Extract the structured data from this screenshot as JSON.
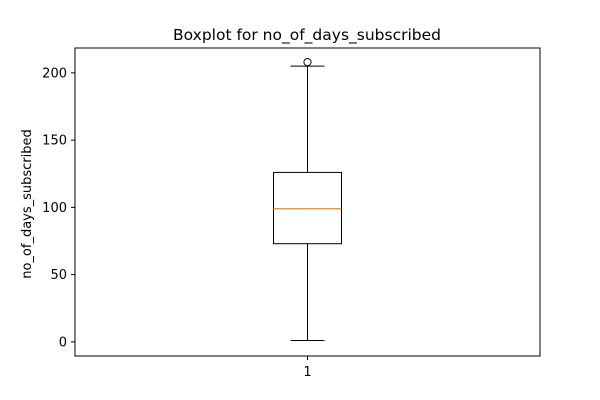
{
  "chart_data": {
    "type": "boxplot",
    "title": "Boxplot for no_of_days_subscribed",
    "xlabel": "",
    "ylabel": "no_of_days_subscribed",
    "categories": [
      "1"
    ],
    "yticks": [
      0,
      50,
      100,
      150,
      200
    ],
    "ylim": [
      -10.5,
      218.5
    ],
    "xlim": [
      0.5,
      1.5
    ],
    "boxes": [
      {
        "category": "1",
        "whisker_low": 1,
        "q1": 73,
        "median": 99,
        "q3": 126,
        "whisker_high": 205,
        "outliers": [
          208
        ]
      }
    ],
    "grid": false,
    "colors": {
      "box": "#000000",
      "median": "#ff7f0e",
      "whisker": "#000000",
      "flier": "#000000"
    }
  }
}
